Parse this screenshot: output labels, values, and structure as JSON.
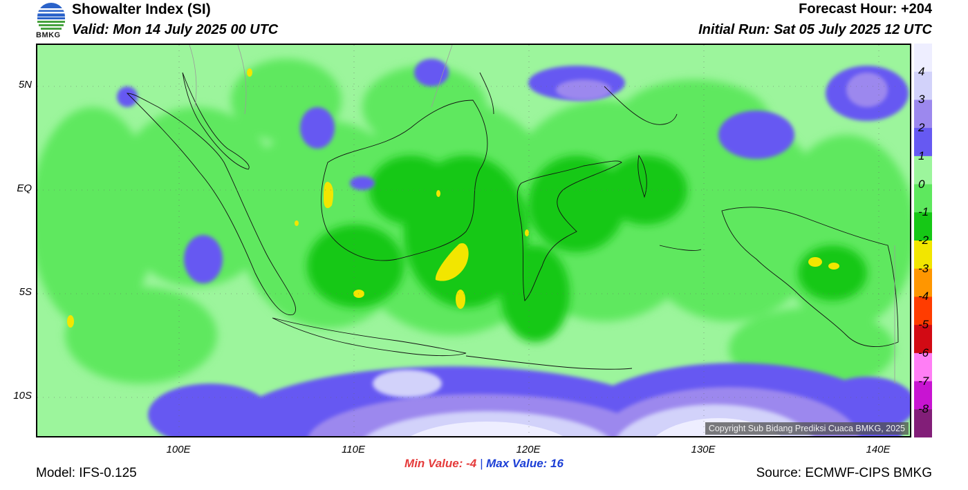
{
  "header": {
    "title": "Showalter Index (SI)",
    "valid": "Valid: Mon 14 July 2025 00 UTC",
    "forecast_hour": "Forecast Hour: +204",
    "initial_run": "Initial Run: Sat 05 July 2025 12 UTC"
  },
  "logo": {
    "text": "BMKG",
    "icon": "bmkg-logo-icon"
  },
  "map": {
    "lat_labels": [
      "5N",
      "EQ",
      "5S",
      "10S"
    ],
    "lon_labels": [
      "100E",
      "110E",
      "120E",
      "130E",
      "140E"
    ],
    "copyright": "Copyright Sub Bidang Prediksi Cuaca BMKG, 2025"
  },
  "colorbar": {
    "labels": [
      "4",
      "3",
      "2",
      "1",
      "0",
      "-1",
      "-2",
      "-3",
      "-4",
      "-5",
      "-6",
      "-7",
      "-8"
    ],
    "colors": [
      "#eeeeff",
      "#d2d2fa",
      "#9c88ee",
      "#6659f2",
      "#9cf59c",
      "#5ee85e",
      "#16c816",
      "#f2e600",
      "#ff9600",
      "#ff3c00",
      "#d20a14",
      "#ff7ef5",
      "#c814d2",
      "#821e78"
    ]
  },
  "minmax": {
    "min": "Min Value:  -4",
    "separator": "|",
    "max": "Max Value:  16"
  },
  "footer": {
    "model": "Model: IFS-0.125",
    "source": "Source: ECMWF-CIPS BMKG"
  }
}
